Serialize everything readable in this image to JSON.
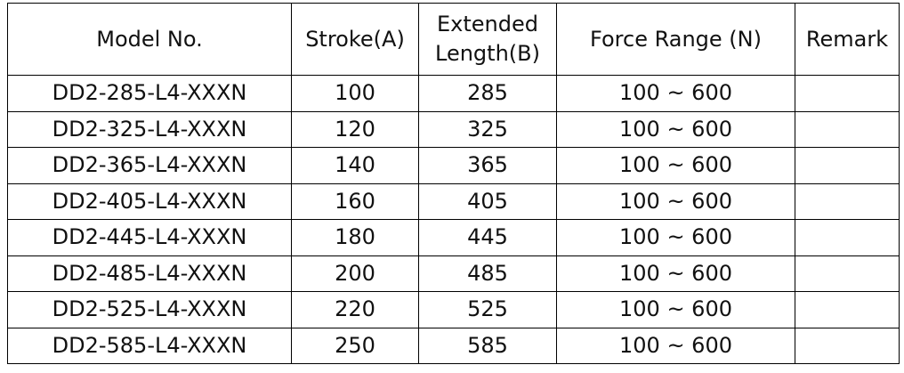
{
  "table": {
    "header": [
      "Model No.",
      "Stroke(A)",
      "Extended Length(B)",
      "Force Range (N)",
      "Remark"
    ],
    "rows": [
      [
        "DD2-285-L4-XXXN",
        100,
        285,
        "100 ~ 600"
      ],
      [
        "DD2-325-L4-XXXN",
        120,
        325,
        "100 ~ 600"
      ],
      [
        "DD2-365-L4-XXXN",
        140,
        365,
        "100 ~ 600"
      ],
      [
        "DD2-405-L4-XXXN",
        160,
        405,
        "100 ~ 600"
      ],
      [
        "DD2-445-L4-XXXN",
        180,
        445,
        "100 ~ 600"
      ],
      [
        "DD2-485-L4-XXXN",
        200,
        485,
        "100 ~ 600"
      ],
      [
        "DD2-525-L4-XXXN",
        220,
        525,
        "100 ~ 600"
      ],
      [
        "DD2-585-L4-XXXN",
        250,
        585,
        "100 ~ 600"
      ]
    ]
  }
}
